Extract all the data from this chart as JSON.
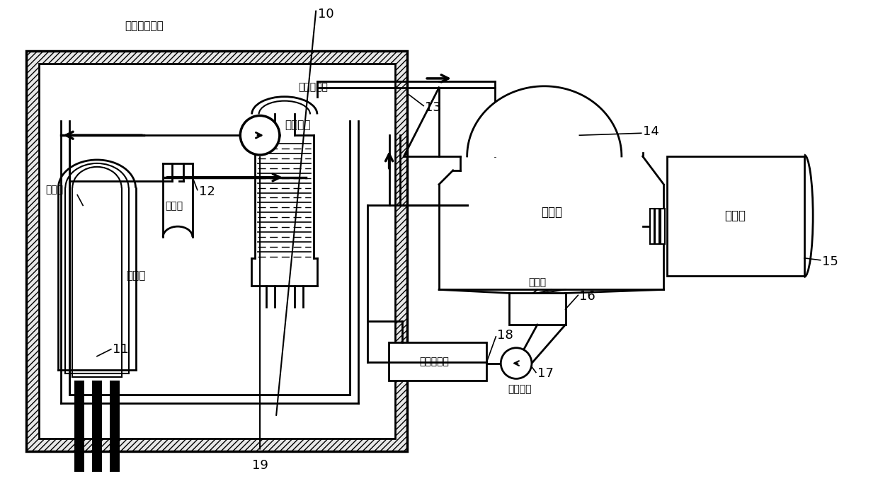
{
  "bg_color": "#ffffff",
  "line_color": "#000000",
  "labels": {
    "concrete_shell": "混凝土防护壳",
    "pressurizer": "稳压器",
    "steam_generator": "蒸汽发生器",
    "reactor": "反应堆",
    "main_pump": "主循环泵",
    "control_rod": "控制棒",
    "turbine": "汽轮机",
    "generator": "发电机",
    "condenser": "凝汽器",
    "feed_heater": "给水加热器",
    "condensate_pump": "凝结水泵"
  },
  "numbers": {
    "n10": "10",
    "n11": "11",
    "n12": "12",
    "n13": "13",
    "n14": "14",
    "n15": "15",
    "n16": "16",
    "n17": "17",
    "n18": "18",
    "n19": "19"
  }
}
